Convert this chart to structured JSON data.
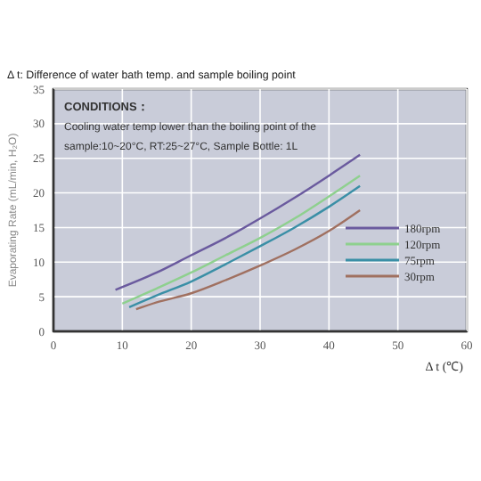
{
  "chart_data": {
    "type": "line",
    "title": "Δ t:  Difference of water bath temp. and sample boiling point",
    "xlabel": "Δ t (℃)",
    "ylabel": "Evaporating Rate (mL/min, H₂O)",
    "annotations": [
      "CONDITIONS：",
      "Cooling water temp lower than the boiling point of the",
      "sample:10~20°C, RT:25~27°C, Sample Bottle: 1L"
    ],
    "xlim": [
      0,
      60
    ],
    "xticks": [
      0,
      10,
      20,
      30,
      40,
      50,
      60
    ],
    "ylim": [
      0,
      35
    ],
    "yticks": [
      0,
      5,
      10,
      15,
      20,
      25,
      30,
      35
    ],
    "grid": true,
    "legend": "bottom right",
    "series": [
      {
        "name": "180rpm",
        "color": "#6a5a9e",
        "x": [
          9,
          15,
          20,
          25,
          30,
          35,
          40,
          44.5
        ],
        "values": [
          6,
          8.5,
          11,
          13.5,
          16.3,
          19.3,
          22.5,
          25.5
        ]
      },
      {
        "name": "120rpm",
        "color": "#8ed08e",
        "x": [
          10,
          15,
          20,
          25,
          30,
          35,
          40,
          44.5
        ],
        "values": [
          4,
          6.2,
          8.5,
          11,
          13.5,
          16.3,
          19.5,
          22.5
        ]
      },
      {
        "name": "75rpm",
        "color": "#3a8fa6",
        "x": [
          11,
          15,
          20,
          25,
          30,
          35,
          40,
          44.5
        ],
        "values": [
          3.5,
          5.2,
          7.2,
          9.7,
          12.3,
          15,
          18,
          21
        ]
      },
      {
        "name": "30rpm",
        "color": "#a07060",
        "x": [
          12,
          15,
          20,
          25,
          30,
          35,
          40,
          44.5
        ],
        "values": [
          3.2,
          4.2,
          5.5,
          7.4,
          9.5,
          11.8,
          14.5,
          17.5
        ]
      }
    ]
  }
}
